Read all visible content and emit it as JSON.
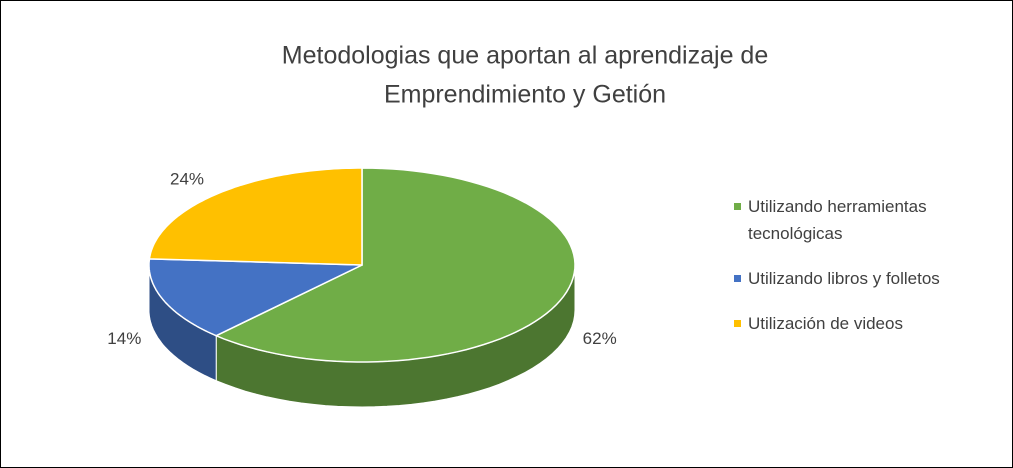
{
  "chart_data": {
    "type": "pie",
    "title": [
      "Metodologias que aportan al aprendizaje de",
      "Emprendimiento y Getión"
    ],
    "categories": [
      "Utilizando herramientas tecnológicas",
      "Utilizando libros y folletos",
      "Utilización de videos"
    ],
    "values": [
      62,
      14,
      24
    ],
    "value_labels": [
      "62%",
      "14%",
      "24%"
    ],
    "colors": [
      "#70ad47",
      "#4472c4",
      "#ffc000"
    ],
    "legend": "right"
  }
}
